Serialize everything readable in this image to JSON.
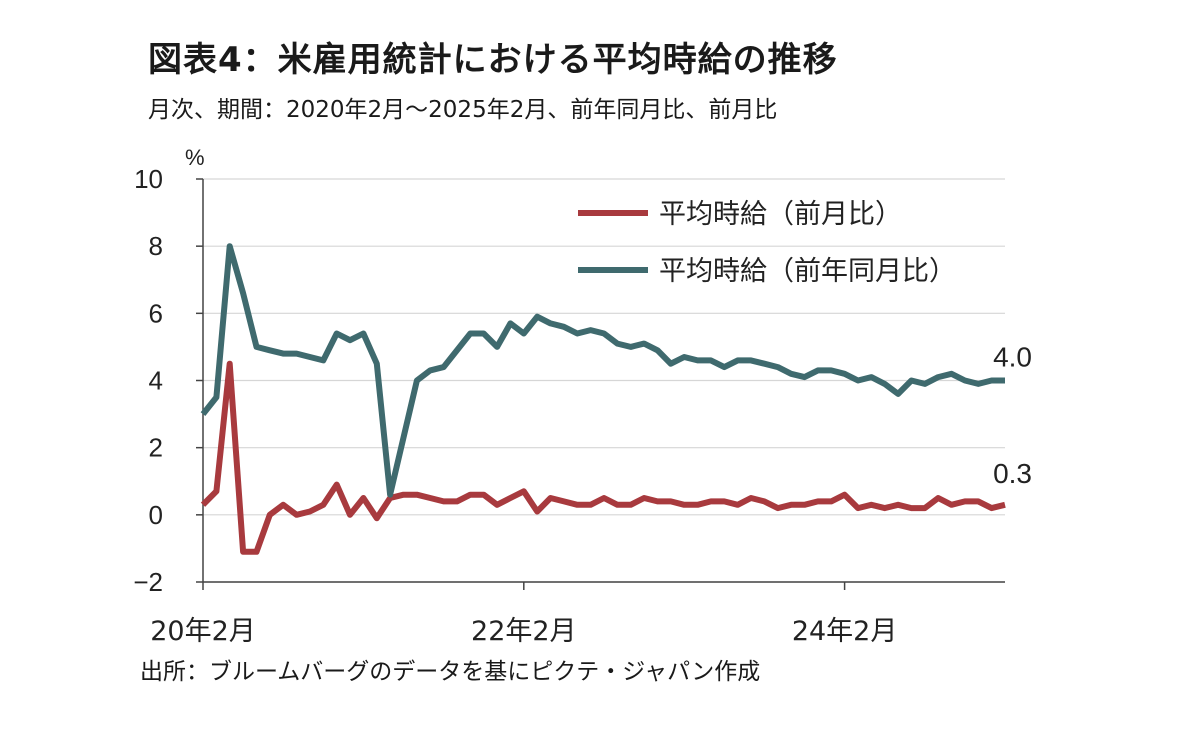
{
  "title": "図表4：米雇用統計における平均時給の推移",
  "subtitle": "月次、期間：2020年2月～2025年2月、前年同月比、前月比",
  "source": "出所：ブルームバーグのデータを基にピクテ・ジャパン作成",
  "chart_data": {
    "type": "line",
    "y_unit": "%",
    "ylim": [
      -2,
      10
    ],
    "y_ticks": [
      10,
      8,
      6,
      4,
      2,
      0,
      -2
    ],
    "x_tick_labels": [
      "20年2月",
      "22年2月",
      "24年2月"
    ],
    "x_tick_index": [
      0,
      24,
      48
    ],
    "grid": true,
    "legend_position": "top-right",
    "colors": {
      "mom": "#a83a3e",
      "yoy": "#3f6a6e"
    },
    "series": [
      {
        "name": "平均時給（前月比）",
        "key": "mom",
        "values": [
          0.3,
          0.7,
          4.5,
          -1.1,
          -1.1,
          0.0,
          0.3,
          0.0,
          0.1,
          0.3,
          0.9,
          0.0,
          0.5,
          -0.1,
          0.5,
          0.6,
          0.6,
          0.5,
          0.4,
          0.4,
          0.6,
          0.6,
          0.3,
          0.5,
          0.7,
          0.1,
          0.5,
          0.4,
          0.3,
          0.3,
          0.5,
          0.3,
          0.3,
          0.5,
          0.4,
          0.4,
          0.3,
          0.3,
          0.4,
          0.4,
          0.3,
          0.5,
          0.4,
          0.2,
          0.3,
          0.3,
          0.4,
          0.4,
          0.6,
          0.2,
          0.3,
          0.2,
          0.3,
          0.2,
          0.2,
          0.5,
          0.3,
          0.4,
          0.4,
          0.2,
          0.3
        ]
      },
      {
        "name": "平均時給（前年同月比）",
        "key": "yoy",
        "values": [
          3.0,
          3.5,
          8.0,
          6.6,
          5.0,
          4.9,
          4.8,
          4.8,
          4.7,
          4.6,
          5.4,
          5.2,
          5.4,
          4.5,
          0.6,
          2.3,
          4.0,
          4.3,
          4.4,
          4.9,
          5.4,
          5.4,
          5.0,
          5.7,
          5.4,
          5.9,
          5.7,
          5.6,
          5.4,
          5.5,
          5.4,
          5.1,
          5.0,
          5.1,
          4.9,
          4.5,
          4.7,
          4.6,
          4.6,
          4.4,
          4.6,
          4.6,
          4.5,
          4.4,
          4.2,
          4.1,
          4.3,
          4.3,
          4.2,
          4.0,
          4.1,
          3.9,
          3.6,
          4.0,
          3.9,
          4.1,
          4.2,
          4.0,
          3.9,
          4.0,
          4.0
        ]
      }
    ],
    "annotations": [
      {
        "series": "yoy",
        "text": "4.0"
      },
      {
        "series": "mom",
        "text": "0.3"
      }
    ]
  }
}
